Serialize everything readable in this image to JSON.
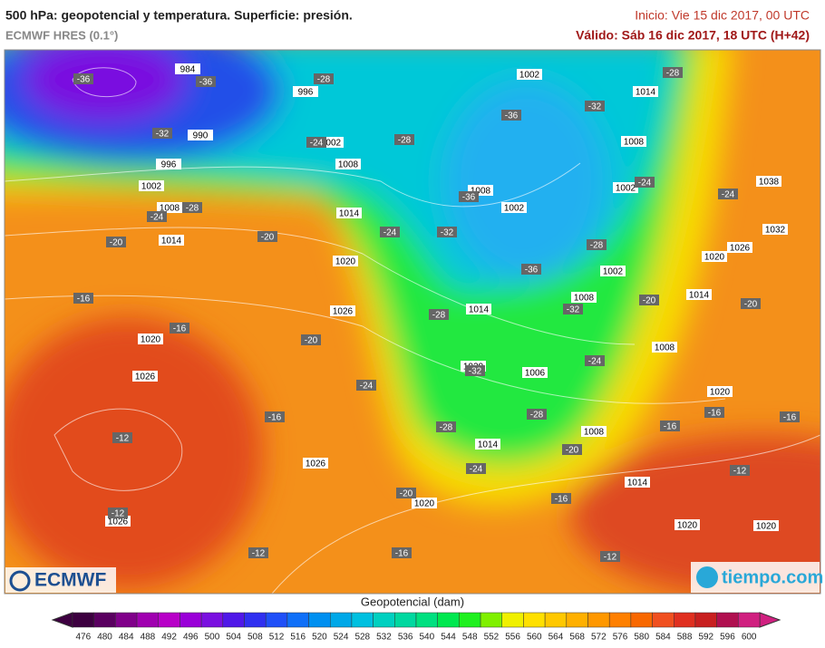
{
  "header": {
    "title": "500 hPa: geopotencial y temperatura. Superficie: presión.",
    "model": "ECMWF HRES (0.1°)",
    "start": "Inicio: Vie 15 dic 2017, 00 UTC",
    "valid": "Válido: Sáb 16 dic 2017, 18 UTC (H+42)"
  },
  "logos": {
    "left": "ECMWF",
    "right": "tiempo.com"
  },
  "isobar_labels": [
    984,
    990,
    996,
    996,
    1002,
    1008,
    1014,
    1002,
    1008,
    1014,
    1020,
    1026,
    1020,
    1026,
    1026,
    1026,
    1020,
    1002,
    1014,
    1008,
    1002,
    1008,
    1002,
    1002,
    1008,
    1014,
    1008,
    1020,
    1006,
    1014,
    1008,
    1014,
    1020,
    1020,
    1020,
    1014,
    1020,
    1026,
    1032,
    1038
  ],
  "temperature_labels": [
    -36,
    -36,
    -32,
    -28,
    -24,
    -28,
    -24,
    -20,
    -20,
    -16,
    -16,
    -20,
    -24,
    -16,
    -12,
    -12,
    -12,
    -20,
    -16,
    -16,
    -12,
    -28,
    -24,
    -32,
    -36,
    -36,
    -32,
    -28,
    -24,
    -24,
    -28,
    -36,
    -32,
    -28,
    -32,
    -28,
    -28,
    -24,
    -20,
    -20,
    -16,
    -16,
    -16,
    -12,
    -20,
    -24
  ],
  "colorbar": {
    "title": "Geopotencial (dam)",
    "ticks": [
      476,
      480,
      484,
      488,
      492,
      496,
      500,
      504,
      508,
      512,
      516,
      520,
      524,
      528,
      532,
      536,
      540,
      544,
      548,
      552,
      556,
      560,
      564,
      568,
      572,
      576,
      580,
      584,
      588,
      592,
      596,
      600
    ],
    "colors": [
      "#3d0040",
      "#5a0060",
      "#80008a",
      "#a000b0",
      "#b800c8",
      "#9a00d8",
      "#7a10e0",
      "#5018e8",
      "#3030f0",
      "#2050f8",
      "#1070f8",
      "#0090f0",
      "#00a8e8",
      "#00c0e0",
      "#00d0c0",
      "#00d8a0",
      "#00e080",
      "#00e850",
      "#20f020",
      "#80f000",
      "#f0f000",
      "#ffe000",
      "#ffc800",
      "#ffb000",
      "#ff9800",
      "#ff8000",
      "#f86800",
      "#f05020",
      "#e03020",
      "#c82020",
      "#b01050",
      "#d02080"
    ]
  }
}
